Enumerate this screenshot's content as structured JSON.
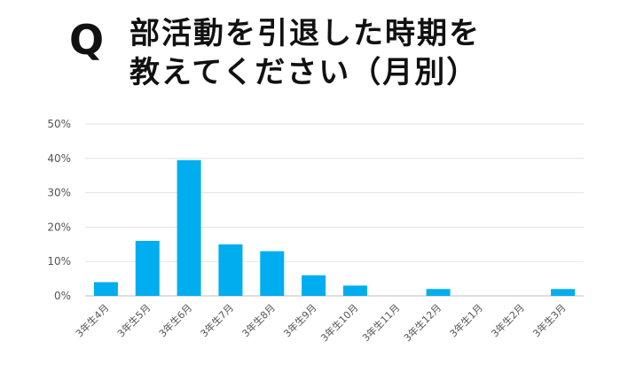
{
  "header": {
    "q_mark": "Q",
    "title_line1": "部活動を引退した時期を",
    "title_line2": "教えてください（月別）"
  },
  "chart_data": {
    "type": "bar",
    "categories": [
      "3年生4月",
      "3年生5月",
      "3年生6月",
      "3年生7月",
      "3年生8月",
      "3年生9月",
      "3年生10月",
      "3年生11月",
      "3年生12月",
      "3年生1月",
      "3年生2月",
      "3年生3月"
    ],
    "values": [
      4,
      16,
      39.5,
      15,
      13,
      6,
      3,
      0,
      2,
      0,
      0,
      2
    ],
    "ylim": [
      0,
      50
    ],
    "yticks": [
      "0%",
      "10%",
      "20%",
      "30%",
      "40%",
      "50%"
    ],
    "bar_color": "#00aeef",
    "grid": true
  }
}
